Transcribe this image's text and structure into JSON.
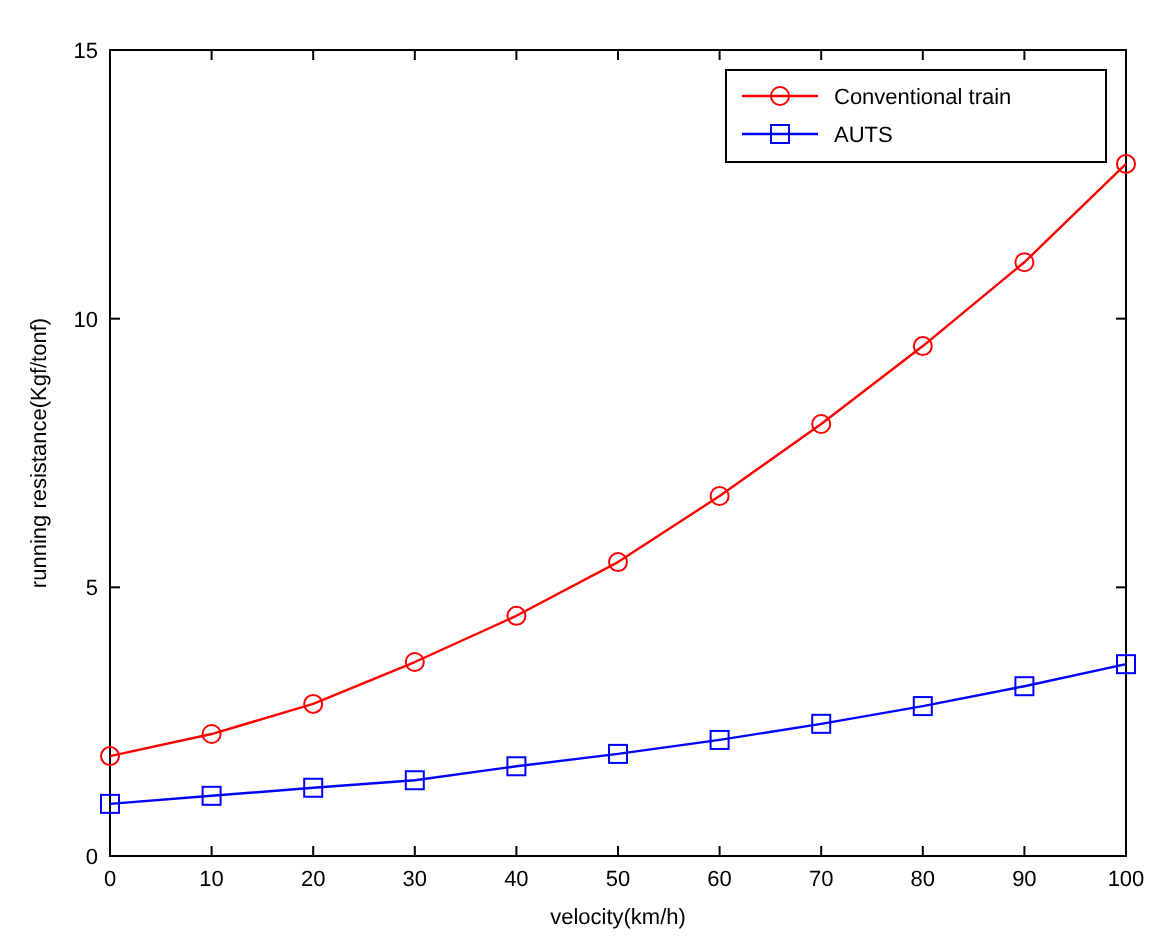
{
  "chart_data": {
    "type": "line",
    "xlabel": "velocity(km/h)",
    "ylabel": "running resistance(Kgf/tonf)",
    "x": [
      0,
      10,
      20,
      30,
      40,
      50,
      60,
      70,
      80,
      90,
      100
    ],
    "series": [
      {
        "name": "Conventional train",
        "color": "#ff0000",
        "marker": "circle",
        "values": [
          1.86,
          2.27,
          2.83,
          3.61,
          4.47,
          5.47,
          6.7,
          8.04,
          9.49,
          11.05,
          12.88
        ]
      },
      {
        "name": "AUTS",
        "color": "#0000ff",
        "marker": "square",
        "values": [
          0.97,
          1.12,
          1.27,
          1.41,
          1.67,
          1.9,
          2.16,
          2.46,
          2.79,
          3.16,
          3.57
        ]
      }
    ],
    "xlim": [
      0,
      100
    ],
    "xticks": [
      0,
      10,
      20,
      30,
      40,
      50,
      60,
      70,
      80,
      90,
      100
    ],
    "ylim": [
      0,
      15
    ],
    "yticks": [
      0,
      5,
      10,
      15
    ],
    "grid": false,
    "legend": "top right",
    "line_style": "solid"
  }
}
